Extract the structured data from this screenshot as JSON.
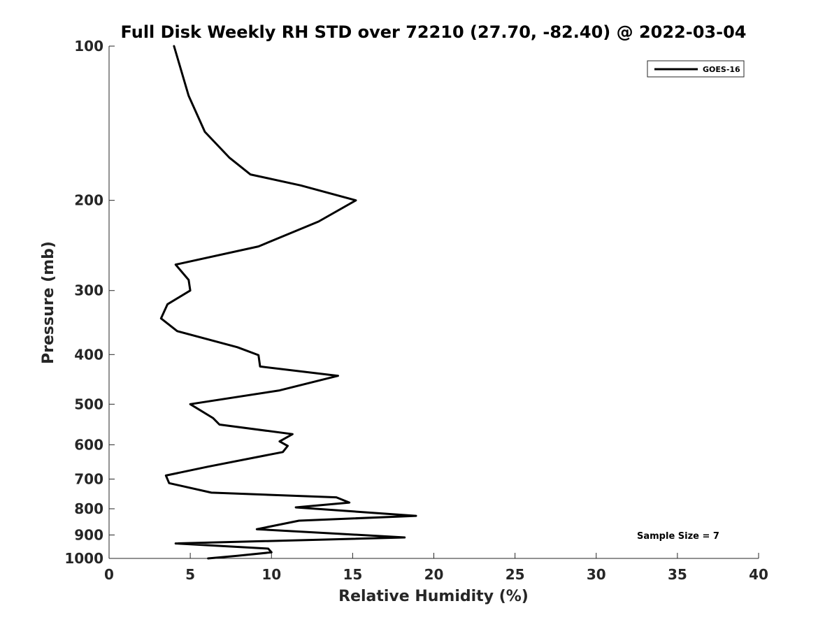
{
  "chart_data": {
    "type": "line",
    "title": "Full Disk Weekly RH STD over 72210 (27.70, -82.40) @ 2022-03-04",
    "xlabel": "Relative Humidity (%)",
    "ylabel": "Pressure (mb)",
    "xlim": [
      0,
      40
    ],
    "ylim": [
      1000,
      100
    ],
    "yscale": "log",
    "x_ticks": [
      0,
      5,
      10,
      15,
      20,
      25,
      30,
      35,
      40
    ],
    "y_ticks": [
      100,
      200,
      300,
      400,
      500,
      600,
      700,
      800,
      900,
      1000
    ],
    "grid": false,
    "legend": {
      "position": "top-right",
      "entries": [
        "GOES-16"
      ]
    },
    "annotation": "Sample Size = 7",
    "series": [
      {
        "name": "GOES-16",
        "color": "#000000",
        "x": [
          4.0,
          4.9,
          5.9,
          7.4,
          8.7,
          11.8,
          15.2,
          12.9,
          9.2,
          4.1,
          4.9,
          5.0,
          3.6,
          3.2,
          4.2,
          7.9,
          9.2,
          9.3,
          14.1,
          10.5,
          5.0,
          6.4,
          6.8,
          11.3,
          10.5,
          11.0,
          10.7,
          6.1,
          3.5,
          3.7,
          6.3,
          14.0,
          14.8,
          11.5,
          18.9,
          11.7,
          9.1,
          18.2,
          4.1,
          9.8,
          10.0,
          7.9,
          6.1
        ],
        "y": [
          100,
          125,
          147,
          165,
          178,
          187,
          200,
          220,
          246,
          267,
          286,
          300,
          319,
          340,
          360,
          387,
          401,
          422,
          440,
          470,
          500,
          532,
          548,
          572,
          591,
          603,
          620,
          662,
          689,
          713,
          744,
          760,
          778,
          795,
          826,
          844,
          877,
          910,
          935,
          957,
          973,
          988,
          1000
        ]
      }
    ]
  }
}
